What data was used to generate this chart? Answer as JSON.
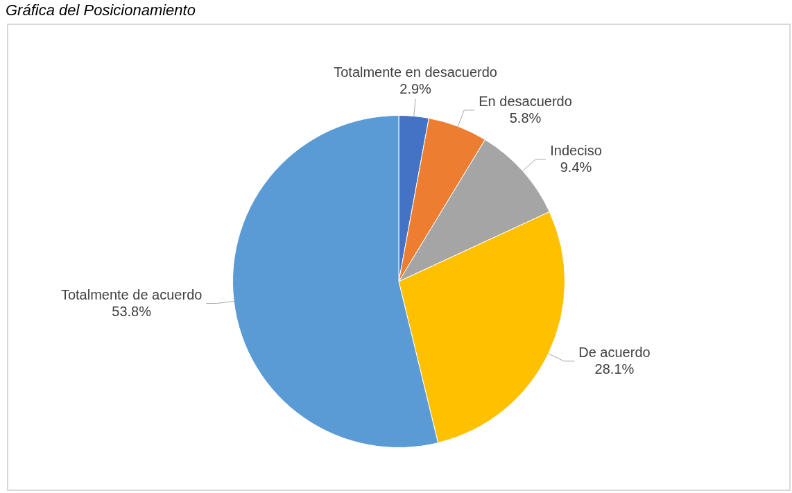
{
  "chart_data": {
    "type": "pie",
    "title": "Gráfica del Posicionamiento",
    "categories": [
      "Totalmente en desacuerdo",
      "En desacuerdo",
      "Indeciso",
      "De acuerdo",
      "Totalmente de acuerdo"
    ],
    "values": [
      2.9,
      5.8,
      9.4,
      28.1,
      53.8
    ],
    "value_labels": [
      "2.9%",
      "5.8%",
      "9.4%",
      "28.1%",
      "53.8%"
    ],
    "colors": [
      "#4472c4",
      "#ed7d31",
      "#a5a5a5",
      "#ffc000",
      "#5b9bd5"
    ],
    "legend": false
  }
}
